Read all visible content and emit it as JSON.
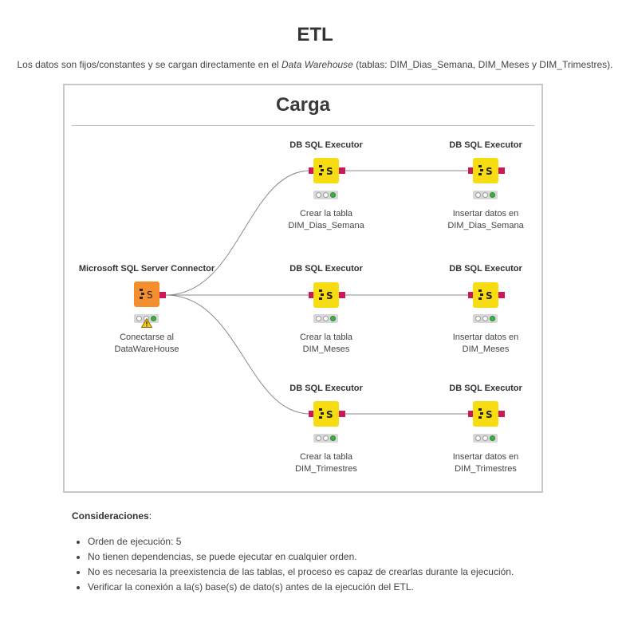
{
  "page": {
    "title": "ETL",
    "intro": {
      "before": "Los datos son fijos/constantes y se cargan directamente en el ",
      "emphasis": "Data Warehouse",
      "after": " (tablas: DIM_Dias_Semana, DIM_Meses y DIM_Trimestres)."
    }
  },
  "workflow": {
    "title": "Carga",
    "colors": {
      "executor": "#f7dc11",
      "connector": "#f58f2d",
      "port": "#c9185c",
      "status_ok": "#3fb043",
      "warning": "#f5c518"
    },
    "connector": {
      "header": "Microsoft SQL Server Connector",
      "label_line1": "Conectarse al",
      "label_line2": "DataWareHouse",
      "status": [
        "idle",
        "warning",
        "ok"
      ]
    },
    "rows": [
      {
        "create": {
          "header": "DB SQL Executor",
          "label_line1": "Crear la tabla",
          "label_line2": "DIM_Dias_Semana"
        },
        "insert": {
          "header": "DB SQL Executor",
          "label_line1": "Insertar datos en",
          "label_line2": "DIM_Dias_Semana"
        }
      },
      {
        "create": {
          "header": "DB SQL Executor",
          "label_line1": "Crear la tabla",
          "label_line2": "DIM_Meses"
        },
        "insert": {
          "header": "DB SQL Executor",
          "label_line1": "Insertar datos en",
          "label_line2": "DIM_Meses"
        }
      },
      {
        "create": {
          "header": "DB SQL Executor",
          "label_line1": "Crear la tabla",
          "label_line2": "DIM_Trimestres"
        },
        "insert": {
          "header": "DB SQL Executor",
          "label_line1": "Insertar datos en",
          "label_line2": "DIM_Trimestres"
        }
      }
    ]
  },
  "considerations": {
    "heading": "Consideraciones",
    "items": [
      "Orden de ejecución: 5",
      "No tienen dependencias, se puede ejecutar en cualquier orden.",
      "No es necesaria la preexistencia de las tablas, el proceso es capaz de crearlas durante la ejecución.",
      "Verificar la conexión a la(s) base(s) de dato(s) antes de la ejecución del ETL."
    ]
  }
}
